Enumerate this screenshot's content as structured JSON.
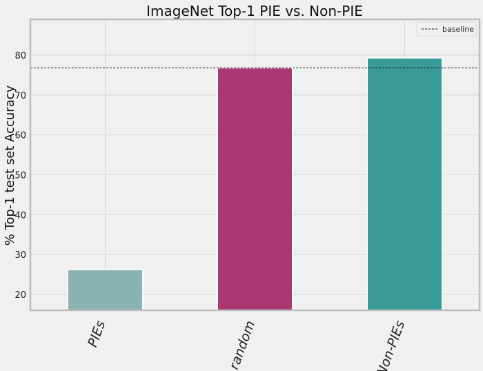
{
  "chart_data": {
    "type": "bar",
    "title": "ImageNet Top-1 PIE vs. Non-PIE",
    "xlabel": "",
    "ylabel": "% Top-1 test set Accuracy",
    "categories": [
      "PIEs",
      "random",
      "Non-PIEs"
    ],
    "values": [
      26.2,
      76.8,
      79.3
    ],
    "bar_colors": [
      "#8ab3b3",
      "#a8386f",
      "#3a9a97"
    ],
    "ylim": [
      16,
      89
    ],
    "yticks": [
      20,
      30,
      40,
      50,
      60,
      70,
      80
    ],
    "baseline": {
      "name": "baseline",
      "value": 76.8,
      "style": "dashed",
      "color": "#111111"
    },
    "legend": {
      "position": "top-right",
      "entries": [
        "baseline"
      ]
    },
    "grid": true
  }
}
